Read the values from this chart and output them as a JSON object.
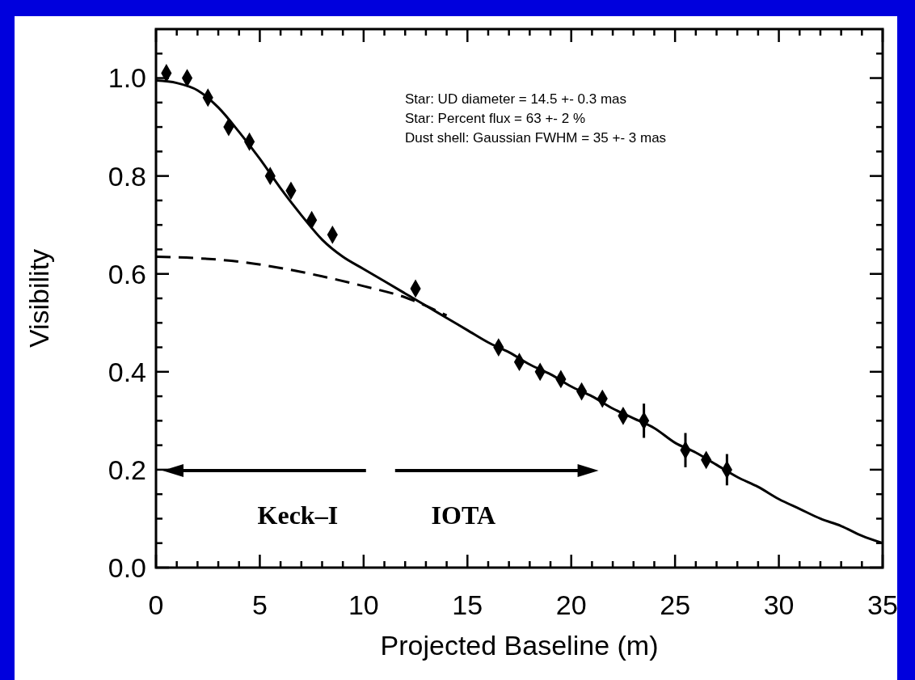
{
  "chart_data": {
    "type": "line",
    "xlabel": "Projected Baseline (m)",
    "ylabel": "Visibility",
    "xlim": [
      0,
      35
    ],
    "ylim": [
      0,
      1.1
    ],
    "xticks": [
      0,
      {
        "value": 1,
        "label": null
      },
      {
        "value": 2,
        "label": null
      },
      {
        "value": 3,
        "label": null
      },
      {
        "value": 4,
        "label": null
      },
      5,
      {
        "value": 6,
        "label": null
      },
      {
        "value": 7,
        "label": null
      },
      {
        "value": 8,
        "label": null
      },
      {
        "value": 9,
        "label": null
      },
      10,
      {
        "value": 11,
        "label": null
      },
      {
        "value": 12,
        "label": null
      },
      {
        "value": 13,
        "label": null
      },
      {
        "value": 14,
        "label": null
      },
      15,
      {
        "value": 16,
        "label": null
      },
      {
        "value": 17,
        "label": null
      },
      {
        "value": 18,
        "label": null
      },
      {
        "value": 19,
        "label": null
      },
      20,
      {
        "value": 21,
        "label": null
      },
      {
        "value": 22,
        "label": null
      },
      {
        "value": 23,
        "label": null
      },
      {
        "value": 24,
        "label": null
      },
      25,
      {
        "value": 26,
        "label": null
      },
      {
        "value": 27,
        "label": null
      },
      {
        "value": 28,
        "label": null
      },
      {
        "value": 29,
        "label": null
      },
      30,
      {
        "value": 31,
        "label": null
      },
      {
        "value": 32,
        "label": null
      },
      {
        "value": 33,
        "label": null
      },
      {
        "value": 34,
        "label": null
      },
      35
    ],
    "yticks": [
      {
        "value": 0,
        "label": "0.0"
      },
      {
        "value": 0.05,
        "label": null
      },
      {
        "value": 0.1,
        "label": null
      },
      {
        "value": 0.15,
        "label": null
      },
      {
        "value": 0.2,
        "label": "0.2"
      },
      {
        "value": 0.25,
        "label": null
      },
      {
        "value": 0.3,
        "label": null
      },
      {
        "value": 0.35,
        "label": null
      },
      {
        "value": 0.4,
        "label": "0.4"
      },
      {
        "value": 0.45,
        "label": null
      },
      {
        "value": 0.5,
        "label": null
      },
      {
        "value": 0.55,
        "label": null
      },
      {
        "value": 0.6,
        "label": "0.6"
      },
      {
        "value": 0.65,
        "label": null
      },
      {
        "value": 0.7,
        "label": null
      },
      {
        "value": 0.75,
        "label": null
      },
      {
        "value": 0.8,
        "label": "0.8"
      },
      {
        "value": 0.85,
        "label": null
      },
      {
        "value": 0.9,
        "label": null
      },
      {
        "value": 0.95,
        "label": null
      },
      {
        "value": 1.0,
        "label": "1.0"
      },
      {
        "value": 1.05,
        "label": null
      }
    ],
    "series": [
      {
        "type": "scatter",
        "marker": "diamond",
        "color": "#000000",
        "x": [
          0.5,
          1.5,
          2.5,
          3.5,
          4.5,
          5.5,
          6.5,
          7.5,
          8.5,
          12.5,
          16.5,
          17.5,
          18.5,
          19.5,
          20.5,
          21.5,
          22.5,
          23.5,
          25.5,
          26.5,
          27.5
        ],
        "values": [
          1.01,
          1.0,
          0.96,
          0.9,
          0.87,
          0.8,
          0.77,
          0.71,
          0.68,
          0.57,
          0.45,
          0.42,
          0.4,
          0.385,
          0.36,
          0.345,
          0.31,
          0.3,
          0.24,
          0.22,
          0.2
        ],
        "errors": [
          null,
          null,
          null,
          null,
          null,
          null,
          null,
          null,
          null,
          null,
          null,
          null,
          null,
          null,
          null,
          null,
          null,
          0.035,
          0.035,
          null,
          0.032
        ]
      },
      {
        "line_style": "solid",
        "color": "#000000",
        "x": [
          0,
          1,
          2,
          3,
          4,
          5,
          6,
          7,
          8,
          9,
          10,
          11,
          12,
          13,
          14,
          15,
          16,
          17,
          18,
          19,
          20,
          21,
          22,
          23,
          24,
          25,
          26,
          27,
          28,
          29,
          30,
          31,
          32,
          33,
          34,
          35
        ],
        "values": [
          0.995,
          0.99,
          0.975,
          0.94,
          0.89,
          0.835,
          0.775,
          0.72,
          0.67,
          0.635,
          0.61,
          0.585,
          0.56,
          0.535,
          0.51,
          0.485,
          0.46,
          0.44,
          0.415,
          0.395,
          0.37,
          0.35,
          0.325,
          0.305,
          0.285,
          0.255,
          0.235,
          0.21,
          0.185,
          0.165,
          0.14,
          0.12,
          0.1,
          0.085,
          0.065,
          0.05
        ]
      },
      {
        "line_style": "dashed",
        "color": "#000000",
        "x": [
          0,
          2,
          4,
          6,
          8,
          10,
          12,
          14
        ],
        "values": [
          0.635,
          0.632,
          0.625,
          0.612,
          0.595,
          0.575,
          0.552,
          0.515
        ]
      }
    ],
    "annotations": [
      "Star: UD diameter = 14.5 +- 0.3 mas",
      "Star: Percent flux = 63 +- 2 %",
      "Dust shell: Gaussian FWHM = 35 +- 3 mas",
      "Keck–I",
      "IOTA"
    ]
  }
}
